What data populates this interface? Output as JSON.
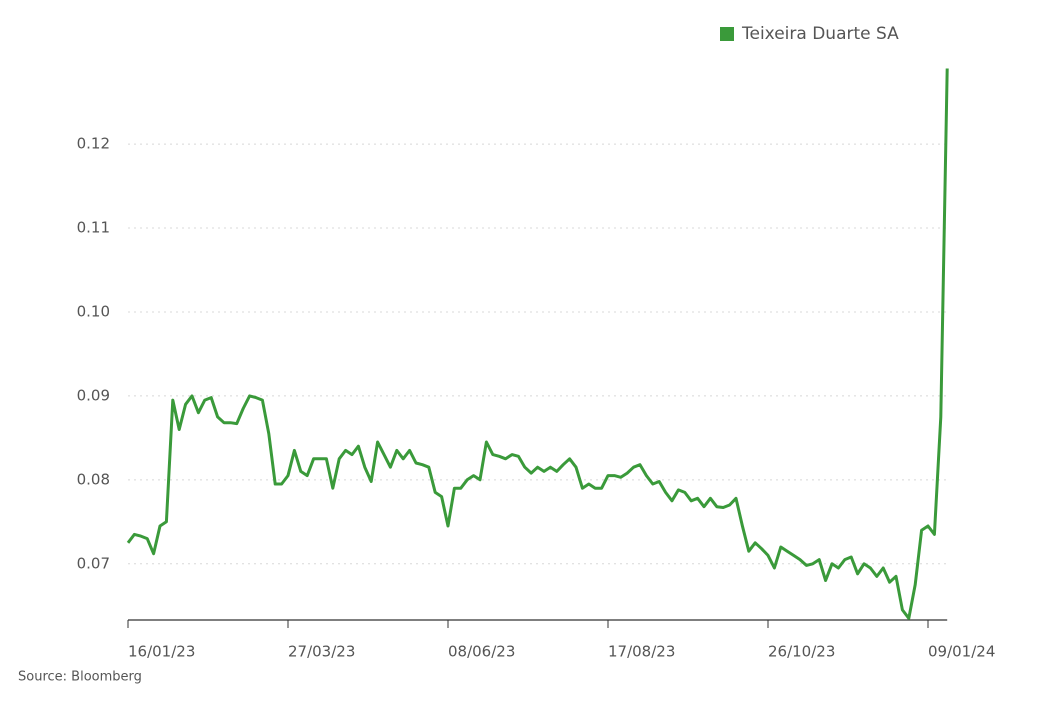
{
  "chart_data": {
    "type": "line",
    "source": "Source: Bloomberg",
    "categories": [
      "16/01/23",
      null,
      null,
      null,
      null,
      null,
      null,
      null,
      null,
      null,
      null,
      null,
      null,
      null,
      null,
      null,
      null,
      null,
      null,
      null,
      null,
      null,
      null,
      null,
      null,
      "27/03/23",
      null,
      null,
      null,
      null,
      null,
      null,
      null,
      null,
      null,
      null,
      null,
      null,
      null,
      null,
      null,
      null,
      null,
      null,
      null,
      null,
      null,
      null,
      null,
      null,
      "08/06/23",
      null,
      null,
      null,
      null,
      null,
      null,
      null,
      null,
      null,
      null,
      null,
      null,
      null,
      null,
      null,
      null,
      null,
      null,
      null,
      null,
      null,
      null,
      null,
      null,
      "17/08/23",
      null,
      null,
      null,
      null,
      null,
      null,
      null,
      null,
      null,
      null,
      null,
      null,
      null,
      null,
      null,
      null,
      null,
      null,
      null,
      null,
      null,
      null,
      null,
      null,
      "26/10/23",
      null,
      null,
      null,
      null,
      null,
      null,
      null,
      null,
      null,
      null,
      null,
      null,
      null,
      null,
      null,
      null,
      null,
      null,
      null,
      null,
      null,
      null,
      null,
      null,
      "09/01/24",
      null,
      null,
      null
    ],
    "series": [
      {
        "name": "Teixeira Duarte SA",
        "color": "#3a9a3a",
        "values": [
          0.0725,
          0.0735,
          0.0733,
          0.073,
          0.0712,
          0.0745,
          0.075,
          0.0895,
          0.086,
          0.089,
          0.09,
          0.088,
          0.0895,
          0.0898,
          0.0875,
          0.0868,
          0.0868,
          0.0867,
          0.0885,
          0.09,
          0.0898,
          0.0895,
          0.0855,
          0.0795,
          0.0795,
          0.0805,
          0.0835,
          0.081,
          0.0805,
          0.0825,
          0.0825,
          0.0825,
          0.079,
          0.0825,
          0.0835,
          0.083,
          0.084,
          0.0815,
          0.0798,
          0.0845,
          0.083,
          0.0815,
          0.0835,
          0.0825,
          0.0835,
          0.082,
          0.0818,
          0.0815,
          0.0785,
          0.078,
          0.0745,
          0.079,
          0.079,
          0.08,
          0.0805,
          0.08,
          0.0845,
          0.083,
          0.0828,
          0.0825,
          0.083,
          0.0828,
          0.0815,
          0.0808,
          0.0815,
          0.081,
          0.0815,
          0.081,
          0.0818,
          0.0825,
          0.0815,
          0.079,
          0.0795,
          0.079,
          0.079,
          0.0805,
          0.0805,
          0.0803,
          0.0808,
          0.0815,
          0.0818,
          0.0805,
          0.0795,
          0.0798,
          0.0785,
          0.0775,
          0.0788,
          0.0785,
          0.0775,
          0.0778,
          0.0768,
          0.0778,
          0.0768,
          0.0767,
          0.077,
          0.0778,
          0.0745,
          0.0715,
          0.0725,
          0.0718,
          0.071,
          0.0695,
          0.072,
          0.0715,
          0.071,
          0.0705,
          0.0698,
          0.07,
          0.0705,
          0.068,
          0.07,
          0.0695,
          0.0705,
          0.0708,
          0.0688,
          0.07,
          0.0695,
          0.0685,
          0.0695,
          0.0678,
          0.0685,
          0.0645,
          0.0635,
          0.0675,
          0.074,
          0.0745,
          0.0735,
          0.0875,
          0.129
        ]
      }
    ],
    "ylim": [
      0.0633,
      0.1293
    ],
    "yticks": [
      0.07,
      0.08,
      0.09,
      {
        "value": 0.1,
        "label": "0.10"
      },
      0.11,
      0.12
    ],
    "grid": true,
    "legend": "top-right"
  }
}
